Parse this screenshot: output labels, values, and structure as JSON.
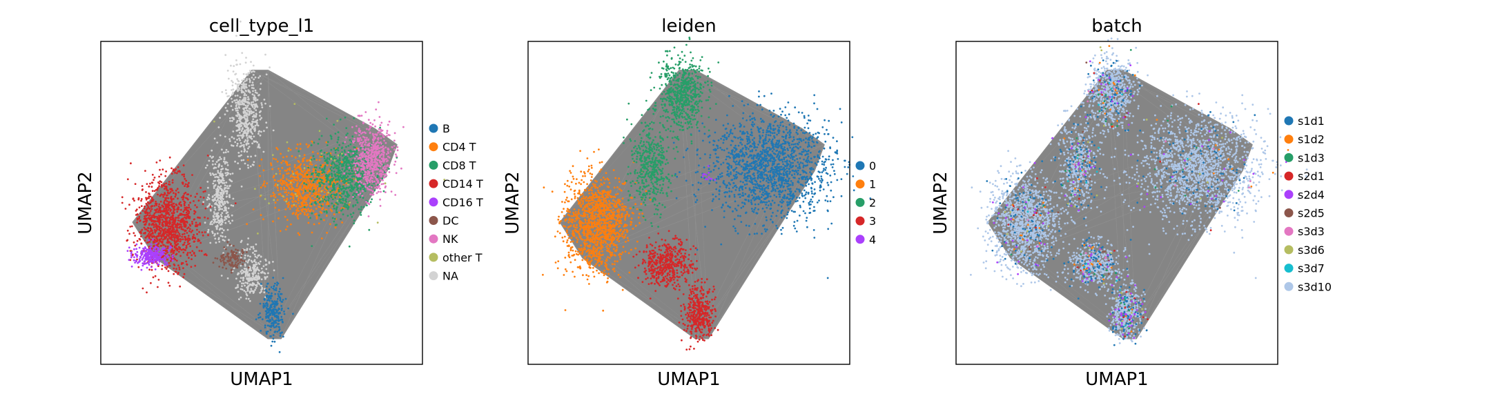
{
  "chart_data": [
    {
      "type": "scatter",
      "title": "cell_type_l1",
      "xlabel": "UMAP1",
      "ylabel": "UMAP2",
      "grid": false,
      "legend_placement": "right",
      "series": [
        {
          "name": "B",
          "color": "#1f77b4"
        },
        {
          "name": "CD4 T",
          "color": "#ff7f0e"
        },
        {
          "name": "CD8 T",
          "color": "#279e68"
        },
        {
          "name": "CD14 T",
          "color": "#d62728"
        },
        {
          "name": "CD16 T",
          "color": "#aa40fc"
        },
        {
          "name": "DC",
          "color": "#8c564b"
        },
        {
          "name": "NK",
          "color": "#e377c2"
        },
        {
          "name": "other T",
          "color": "#b5bd61"
        },
        {
          "name": "NA",
          "color": "#d3d3d3"
        }
      ]
    },
    {
      "type": "scatter",
      "title": "leiden",
      "xlabel": "UMAP1",
      "ylabel": "UMAP2",
      "grid": false,
      "legend_placement": "right",
      "series": [
        {
          "name": "0",
          "color": "#1f77b4"
        },
        {
          "name": "1",
          "color": "#ff7f0e"
        },
        {
          "name": "2",
          "color": "#279e68"
        },
        {
          "name": "3",
          "color": "#d62728"
        },
        {
          "name": "4",
          "color": "#aa40fc"
        }
      ]
    },
    {
      "type": "scatter",
      "title": "batch",
      "xlabel": "UMAP1",
      "ylabel": "UMAP2",
      "grid": false,
      "legend_placement": "right",
      "series": [
        {
          "name": "s1d1",
          "color": "#1f77b4"
        },
        {
          "name": "s1d2",
          "color": "#ff7f0e"
        },
        {
          "name": "s1d3",
          "color": "#279e68"
        },
        {
          "name": "s2d1",
          "color": "#d62728"
        },
        {
          "name": "s2d4",
          "color": "#aa40fc"
        },
        {
          "name": "s2d5",
          "color": "#8c564b"
        },
        {
          "name": "s3d3",
          "color": "#e377c2"
        },
        {
          "name": "s3d6",
          "color": "#b5bd61"
        },
        {
          "name": "s3d7",
          "color": "#17becf"
        },
        {
          "name": "s3d10",
          "color": "#aec7e8"
        }
      ]
    }
  ],
  "edge_color": "#7f7f7f"
}
